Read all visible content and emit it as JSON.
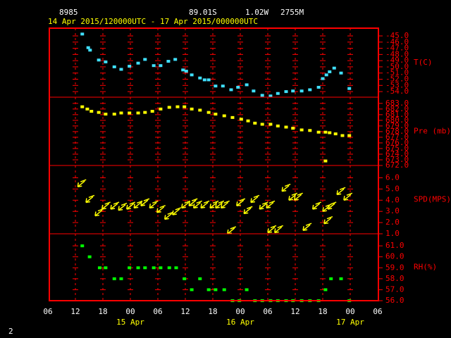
{
  "header": {
    "station": "8985",
    "latitude": "89.01S",
    "longitude": "1.02W",
    "elevation": "2755M",
    "period": "14 Apr 2015/120000UTC - 17 Apr 2015/000000UTC",
    "page": "2"
  },
  "chart_data": [
    {
      "type": "scatter",
      "ylabel": "T(C)",
      "color": "#40e0ff",
      "x": [
        13.5,
        14.8,
        15.2,
        17.1,
        18.6,
        20.5,
        22.0,
        23.8,
        25.7,
        27.2,
        29.1,
        30.6,
        32.3,
        33.8,
        35.5,
        36.2,
        37.4,
        39.2,
        40.2,
        41.1,
        42.6,
        44.2,
        46.0,
        47.5,
        49.4,
        50.9,
        52.8,
        54.6,
        56.2,
        58.0,
        59.5,
        61.4,
        63.2,
        65.1,
        66.0,
        66.8,
        67.5,
        68.5,
        70.0,
        71.8
      ],
      "values": [
        -44.7,
        -46.9,
        -47.3,
        -48.9,
        -49.2,
        -50.0,
        -50.4,
        -49.9,
        -49.4,
        -48.8,
        -49.8,
        -49.8,
        -49.1,
        -48.8,
        -50.5,
        -50.7,
        -51.3,
        -51.8,
        -52.1,
        -52.1,
        -53.1,
        -53.1,
        -53.7,
        -53.3,
        -52.9,
        -53.9,
        -54.6,
        -54.7,
        -54.3,
        -54.0,
        -53.9,
        -53.9,
        -53.7,
        -53.3,
        -51.9,
        -51.3,
        -50.8,
        -50.2,
        -51.0,
        -53.5
      ],
      "ylim": [
        -54.9,
        -43.75
      ],
      "yticks": [
        {
          "value": -45,
          "label": "-45.0"
        },
        {
          "value": -46,
          "label": "-46.0"
        },
        {
          "value": -47,
          "label": "-47.0"
        },
        {
          "value": -48,
          "label": "-48.0"
        },
        {
          "value": -49,
          "label": "-49.0"
        },
        {
          "value": -50,
          "label": "-50.0"
        },
        {
          "value": -51,
          "label": "-51.0"
        },
        {
          "value": -52,
          "label": "-52.0"
        },
        {
          "value": -53,
          "label": "-53.0"
        },
        {
          "value": -54,
          "label": "-54.0"
        }
      ]
    },
    {
      "type": "scatter",
      "ylabel": "Pre (mb)",
      "color": "#ffff00",
      "x": [
        13.5,
        14.6,
        15.5,
        17.1,
        18.6,
        20.5,
        22.0,
        23.8,
        25.7,
        27.2,
        28.8,
        30.6,
        32.5,
        34.3,
        35.8,
        37.4,
        39.2,
        41.1,
        42.6,
        44.5,
        46.3,
        48.2,
        49.7,
        51.2,
        52.8,
        54.6,
        56.2,
        58.0,
        59.5,
        61.4,
        63.2,
        65.1,
        66.6,
        66.6,
        67.5,
        68.8,
        70.3,
        71.8
      ],
      "values": [
        682.4,
        682.0,
        681.6,
        681.4,
        681.1,
        681.1,
        681.3,
        681.3,
        681.3,
        681.4,
        681.6,
        682.0,
        682.3,
        682.4,
        682.4,
        682.0,
        681.8,
        681.4,
        681.1,
        680.8,
        680.5,
        680.2,
        679.9,
        679.5,
        679.3,
        679.3,
        679.0,
        678.8,
        678.6,
        678.3,
        678.2,
        677.9,
        677.9,
        672.8,
        677.8,
        677.6,
        677.3,
        677.3
      ],
      "ylim": [
        672,
        684.1
      ],
      "yticks": [
        {
          "value": 683,
          "label": "683.0"
        },
        {
          "value": 682,
          "label": "682.0"
        },
        {
          "value": 681,
          "label": "681.0"
        },
        {
          "value": 680,
          "label": "680.0"
        },
        {
          "value": 679,
          "label": "679.0"
        },
        {
          "value": 678,
          "label": "678.0"
        },
        {
          "value": 677,
          "label": "677.0"
        },
        {
          "value": 676,
          "label": "676.0"
        },
        {
          "value": 675,
          "label": "675.0"
        },
        {
          "value": 674,
          "label": "674.0"
        },
        {
          "value": 673,
          "label": "673.0"
        },
        {
          "value": 672,
          "label": "672.0"
        }
      ]
    },
    {
      "type": "arrow",
      "ylabel": "SPD(MPS)",
      "color": "#ffff00",
      "x": [
        12.5,
        14.3,
        16.3,
        17.8,
        19.7,
        21.4,
        23.2,
        24.8,
        26.3,
        28.2,
        29.8,
        31.5,
        33.2,
        35.2,
        36.8,
        37.8,
        39.4,
        41.4,
        42.6,
        43.8,
        45.2,
        47.2,
        48.8,
        50.3,
        52.2,
        53.7,
        54.0,
        55.5,
        57.1,
        58.6,
        59.8,
        61.7,
        63.8,
        66.0,
        66.3,
        67.1,
        69.1,
        70.6
      ],
      "values": [
        5.2,
        3.8,
        2.6,
        3.2,
        3.2,
        3.1,
        3.2,
        3.3,
        3.5,
        3.3,
        2.9,
        2.3,
        2.7,
        3.3,
        3.5,
        3.3,
        3.3,
        3.3,
        3.3,
        3.3,
        1.0,
        3.5,
        2.8,
        3.8,
        3.2,
        3.3,
        1.1,
        1.1,
        4.8,
        4.0,
        4.0,
        1.3,
        3.2,
        3.0,
        1.9,
        3.2,
        4.5,
        4.0
      ],
      "ylim": [
        1,
        7.1
      ],
      "yticks": [
        {
          "value": 6,
          "label": "6.0"
        },
        {
          "value": 5,
          "label": "5.0"
        },
        {
          "value": 4,
          "label": "4.0"
        },
        {
          "value": 3,
          "label": "3.0"
        },
        {
          "value": 2,
          "label": "2.0"
        },
        {
          "value": 1,
          "label": "1.0"
        }
      ]
    },
    {
      "type": "scatter",
      "ylabel": "RH(%)",
      "color": "#00ff00",
      "x": [
        13.5,
        15.1,
        17.3,
        18.6,
        20.5,
        22.0,
        23.8,
        25.7,
        27.2,
        29.1,
        30.6,
        32.5,
        34.0,
        35.8,
        37.4,
        39.2,
        41.1,
        42.6,
        44.5,
        46.3,
        47.8,
        49.4,
        51.2,
        52.8,
        54.6,
        56.2,
        58.0,
        59.5,
        61.4,
        63.2,
        65.1,
        66.6,
        67.8,
        70.0,
        71.8
      ],
      "values": [
        61,
        60,
        59,
        59,
        58,
        58,
        59,
        59,
        59,
        59,
        59,
        59,
        59,
        58,
        57,
        58,
        57,
        57,
        57,
        56,
        56,
        57,
        56,
        56,
        56,
        56,
        56,
        56,
        56,
        56,
        56,
        57,
        58,
        58,
        56
      ],
      "ylim": [
        56,
        62.1
      ],
      "yticks": [
        {
          "value": 61,
          "label": "61.0"
        },
        {
          "value": 60,
          "label": "60.0"
        },
        {
          "value": 59,
          "label": "59.0"
        },
        {
          "value": 58,
          "label": "58.0"
        },
        {
          "value": 57,
          "label": "57.0"
        },
        {
          "value": 56,
          "label": "56.0"
        }
      ],
      "xlim": [
        6,
        78
      ],
      "xticks": [
        {
          "value": 6,
          "label": "06"
        },
        12,
        18,
        {
          "value": 24,
          "label": "00"
        },
        {
          "value": 30,
          "label": "06"
        },
        {
          "value": 36,
          "label": "12"
        },
        {
          "value": 42,
          "label": "18"
        },
        {
          "value": 48,
          "label": "00"
        },
        {
          "value": 54,
          "label": "06"
        },
        {
          "value": 60,
          "label": "12"
        },
        {
          "value": 66,
          "label": "18"
        },
        {
          "value": 72,
          "label": "00"
        },
        {
          "value": 78,
          "label": "06"
        }
      ],
      "x_group_labels": [
        {
          "value": 24,
          "label": "15 Apr"
        },
        {
          "value": 48,
          "label": "16 Apr"
        },
        {
          "value": 72,
          "label": "17 Apr"
        }
      ]
    }
  ]
}
